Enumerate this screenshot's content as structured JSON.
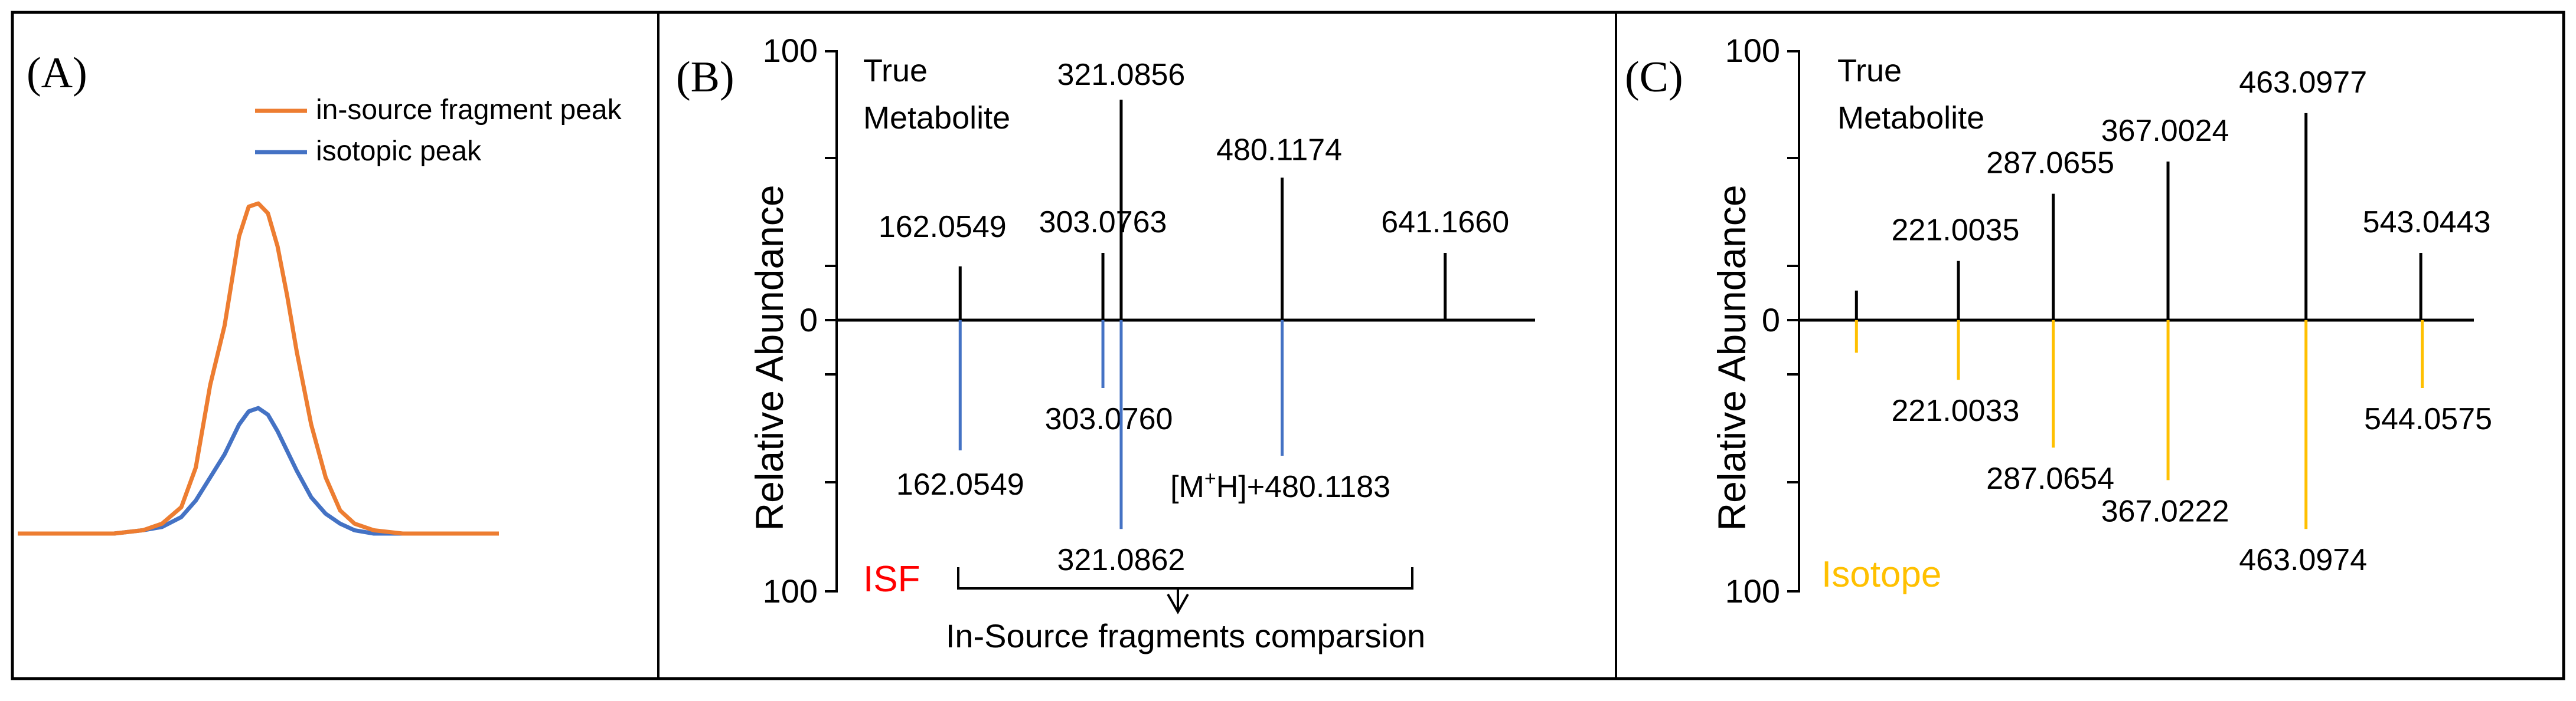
{
  "colors": {
    "isf_peak": "#ED7D31",
    "isotopic_peak": "#4472C4",
    "isf_label": "#FF0000",
    "isotope_spectrum": "#FFC000",
    "true_spectrum": "#000000",
    "frame": "#000000",
    "background": "#ffffff"
  },
  "chart_data": [
    {
      "type": "line",
      "panel_label": "(A)",
      "title": "",
      "xlabel": "",
      "ylabel": "",
      "axes_visible": false,
      "legend_position": "top-right",
      "series": [
        {
          "name": "in-source fragment peak",
          "x": [
            0,
            10,
            20,
            26,
            30,
            34,
            37,
            40,
            43,
            46,
            48,
            50,
            52,
            54,
            56,
            58,
            61,
            64,
            67,
            70,
            74,
            80,
            90,
            100
          ],
          "y": [
            0.0,
            0.0,
            0.0,
            0.01,
            0.03,
            0.08,
            0.2,
            0.45,
            0.63,
            0.9,
            0.99,
            1.0,
            0.97,
            0.87,
            0.72,
            0.55,
            0.33,
            0.17,
            0.07,
            0.03,
            0.01,
            0.0,
            0.0,
            0.0
          ]
        },
        {
          "name": "isotopic peak",
          "x": [
            0,
            10,
            20,
            26,
            30,
            34,
            37,
            40,
            43,
            46,
            48,
            50,
            52,
            54,
            56,
            58,
            61,
            64,
            67,
            70,
            74,
            80,
            90,
            100
          ],
          "y": [
            0.0,
            0.0,
            0.0,
            0.01,
            0.02,
            0.05,
            0.1,
            0.17,
            0.24,
            0.33,
            0.37,
            0.38,
            0.36,
            0.31,
            0.25,
            0.19,
            0.11,
            0.06,
            0.03,
            0.01,
            0.0,
            0.0,
            0.0,
            0.0
          ]
        }
      ]
    },
    {
      "type": "bar",
      "panel_label": "(B)",
      "xlabel": "",
      "ylabel": "Relative Abundance",
      "yticks": [
        "100",
        "0",
        "100"
      ],
      "ylim": [
        -100,
        100
      ],
      "upper_label": "True\nMetabolite",
      "lower_label": "ISF",
      "bracket_label": "In-Source fragments comparsion",
      "x": [
        162.0549,
        303.0763,
        321.0856,
        480.1174,
        641.166
      ],
      "upper_series": {
        "name": "True Metabolite",
        "values": [
          20,
          25,
          82,
          53,
          25
        ],
        "labels": [
          "162.0549",
          "303.0763",
          "321.0856",
          "480.1174",
          "641.1660"
        ]
      },
      "lower_series": {
        "name": "ISF",
        "values": [
          -48,
          -25,
          -77,
          -50
        ],
        "x": [
          162.0549,
          303.076,
          321.0862,
          480.1183
        ],
        "labels": [
          "162.0549",
          "303.0760",
          "321.0862",
          "[M+H]+480.1183"
        ]
      }
    },
    {
      "type": "bar",
      "panel_label": "(C)",
      "xlabel": "",
      "ylabel": "Relative Abundance",
      "yticks": [
        "100",
        "0",
        "100"
      ],
      "ylim": [
        -100,
        100
      ],
      "upper_label": "True\nMetabolite",
      "lower_label": "Isotope",
      "upper_series": {
        "name": "True Metabolite",
        "x": [
          150,
          221.0035,
          287.0655,
          367.0024,
          463.0977,
          543.0443
        ],
        "values": [
          11,
          22,
          47,
          59,
          77,
          25
        ],
        "labels": [
          "",
          "221.0035",
          "287.0655",
          "367.0024",
          "463.0977",
          "543.0443"
        ]
      },
      "lower_series": {
        "name": "Isotope",
        "x": [
          150,
          221.0033,
          287.0654,
          367.0222,
          463.0974,
          544.0575
        ],
        "values": [
          -12,
          -22,
          -47,
          -59,
          -77,
          -25
        ],
        "labels": [
          "",
          "221.0033",
          "287.0654",
          "367.0222",
          "463.0974",
          "544.0575"
        ]
      }
    }
  ]
}
